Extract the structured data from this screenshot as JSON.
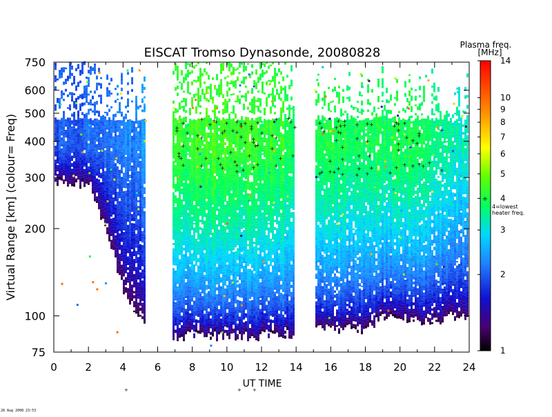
{
  "chart_data": {
    "type": "heatmap",
    "title": "EISCAT Tromso Dynasonde,   20080828",
    "xlabel": "UT TIME",
    "ylabel": "Virtual Range [km]    (colour=  Freq)",
    "x_ticks": [
      0,
      2,
      4,
      6,
      8,
      10,
      12,
      14,
      16,
      18,
      20,
      22,
      24
    ],
    "y_ticks": [
      75,
      100,
      200,
      300,
      400,
      500,
      600,
      750
    ],
    "xlim": [
      0,
      24
    ],
    "ylim": [
      75,
      750
    ],
    "y_scale": "log",
    "colorbar": {
      "title": "Plasma freq.",
      "unit": "[MHz]",
      "ticks": [
        1,
        2,
        3,
        4,
        5,
        6,
        7,
        8,
        9,
        10,
        14
      ],
      "range": [
        1,
        14
      ],
      "annotation": "4=lowest heater freq.",
      "marker": "+"
    },
    "data_gaps_ut": [
      [
        5.3,
        6.8
      ],
      [
        13.8,
        15.0
      ]
    ],
    "upper_cutoff_km": 470,
    "approx_profile": {
      "ut": [
        0,
        1,
        2,
        3,
        4,
        5,
        7,
        8,
        9,
        10,
        11,
        12,
        13,
        15,
        16,
        17,
        18,
        19,
        20,
        21,
        22,
        23,
        24
      ],
      "lowest_echo_km": [
        290,
        290,
        280,
        190,
        120,
        95,
        85,
        85,
        85,
        85,
        85,
        85,
        85,
        90,
        90,
        90,
        90,
        100,
        100,
        95,
        95,
        100,
        100
      ],
      "peak_freq_mhz": [
        2.0,
        2.0,
        2.1,
        2.2,
        2.2,
        2.3,
        4.2,
        4.4,
        4.5,
        4.5,
        4.4,
        4.3,
        4.2,
        4.0,
        4.1,
        4.0,
        3.9,
        3.8,
        4.0,
        4.0,
        3.6,
        3.4,
        3.2
      ]
    },
    "grid": false,
    "legend": "colorbar-right"
  },
  "footer": {
    "timestamp": "28 Aug 2008 23:53"
  },
  "colors": {
    "background": "#ffffff",
    "axes": "#000000",
    "scale": [
      "#000000",
      "#5a0080",
      "#1020e0",
      "#00c8ff",
      "#00ff40",
      "#ffff00",
      "#ff8000",
      "#ff0000"
    ]
  }
}
